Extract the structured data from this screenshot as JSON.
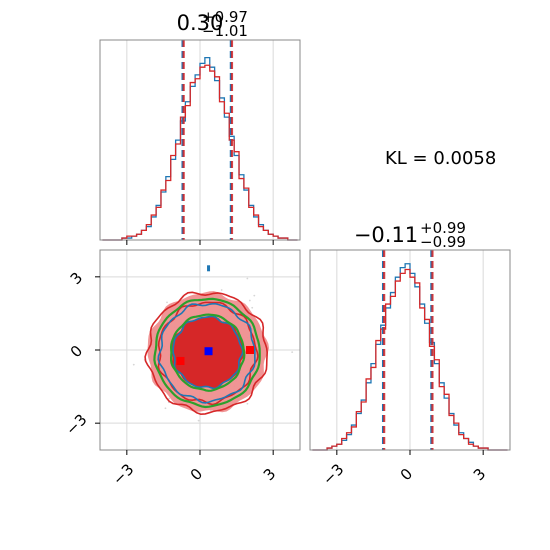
{
  "chart_data": {
    "type": "corner",
    "kl_label": "KL = 0.0058",
    "colors": {
      "blue": "#1f77b4",
      "red": "#d62728",
      "green": "#2ca02c",
      "median_line": "#8b2a44",
      "grid": "#d9d9d9"
    },
    "param1": {
      "title_median": "0.30",
      "title_plus": "+0.97",
      "title_minus": "−1.01",
      "quantiles": [
        -0.71,
        0.3,
        1.27
      ],
      "xlim": [
        -4.1,
        4.1
      ],
      "grid_ticks": [
        -3,
        0,
        3
      ]
    },
    "param2": {
      "title_median": "−0.11",
      "title_plus": "+0.99",
      "title_minus": "−0.99",
      "quantiles": [
        -1.1,
        -0.11,
        0.88
      ],
      "xlim": [
        -4.1,
        4.1
      ],
      "ylim": [
        -4.1,
        4.1
      ],
      "grid_ticks": [
        -3,
        0,
        3
      ]
    },
    "x_tick_labels": [
      "−3",
      "0",
      "3"
    ],
    "y_tick_labels": [
      "3",
      "0",
      "−3"
    ],
    "markers": [
      {
        "name": "blue",
        "x": 0.35,
        "y": -0.05
      },
      {
        "name": "red-left",
        "x": -0.8,
        "y": -0.45
      },
      {
        "name": "red-right",
        "x": 2.05,
        "y": 0.0
      }
    ],
    "hist_bins": [
      -4.0,
      -3.8,
      -3.6,
      -3.4,
      -3.2,
      -3.0,
      -2.8,
      -2.6,
      -2.4,
      -2.2,
      -2.0,
      -1.8,
      -1.6,
      -1.4,
      -1.2,
      -1.0,
      -0.8,
      -0.6,
      -0.4,
      -0.2,
      0.0,
      0.2,
      0.4,
      0.6,
      0.8,
      1.0,
      1.2,
      1.4,
      1.6,
      1.8,
      2.0,
      2.2,
      2.4,
      2.6,
      2.8,
      3.0,
      3.2,
      3.4,
      3.6,
      3.8,
      4.0
    ],
    "hist1_blue": [
      0,
      0,
      0,
      0,
      0.01,
      0.01,
      0.02,
      0.03,
      0.05,
      0.07,
      0.12,
      0.18,
      0.25,
      0.33,
      0.42,
      0.52,
      0.62,
      0.72,
      0.8,
      0.86,
      0.92,
      0.95,
      0.9,
      0.83,
      0.74,
      0.64,
      0.54,
      0.44,
      0.34,
      0.26,
      0.18,
      0.12,
      0.08,
      0.05,
      0.03,
      0.02,
      0.01,
      0.01,
      0,
      0
    ],
    "hist1_red": [
      0,
      0,
      0,
      0,
      0.01,
      0.02,
      0.02,
      0.03,
      0.05,
      0.08,
      0.13,
      0.17,
      0.26,
      0.31,
      0.44,
      0.5,
      0.64,
      0.7,
      0.82,
      0.84,
      0.9,
      0.91,
      0.88,
      0.85,
      0.72,
      0.66,
      0.52,
      0.46,
      0.32,
      0.27,
      0.17,
      0.13,
      0.07,
      0.05,
      0.03,
      0.02,
      0.01,
      0.01,
      0,
      0
    ],
    "hist2_blue": [
      0,
      0,
      0,
      0.01,
      0.02,
      0.03,
      0.05,
      0.08,
      0.13,
      0.19,
      0.26,
      0.35,
      0.45,
      0.55,
      0.65,
      0.74,
      0.82,
      0.9,
      0.95,
      0.97,
      0.92,
      0.85,
      0.76,
      0.66,
      0.56,
      0.45,
      0.35,
      0.27,
      0.19,
      0.13,
      0.09,
      0.06,
      0.04,
      0.02,
      0.01,
      0.01,
      0,
      0,
      0,
      0
    ],
    "hist2_red": [
      0,
      0,
      0,
      0.01,
      0.02,
      0.03,
      0.06,
      0.09,
      0.12,
      0.2,
      0.25,
      0.37,
      0.43,
      0.57,
      0.63,
      0.76,
      0.8,
      0.88,
      0.92,
      0.94,
      0.9,
      0.87,
      0.74,
      0.68,
      0.54,
      0.47,
      0.33,
      0.29,
      0.18,
      0.14,
      0.08,
      0.06,
      0.03,
      0.02,
      0.01,
      0.01,
      0,
      0,
      0,
      0
    ],
    "contours": {
      "blue": [
        {
          "rx": 1.4,
          "ry": 1.45
        },
        {
          "rx": 1.95,
          "ry": 2.0
        }
      ],
      "red": [
        {
          "rx": 1.35,
          "ry": 1.4
        },
        {
          "rx": 2.0,
          "ry": 2.05
        },
        {
          "rx": 2.45,
          "ry": 2.45
        }
      ],
      "green": [
        {
          "rx": 1.5,
          "ry": 1.55
        },
        {
          "rx": 2.15,
          "ry": 2.2
        }
      ],
      "fill_outer_r": 2.45,
      "fill_inner_r": 1.35
    }
  }
}
